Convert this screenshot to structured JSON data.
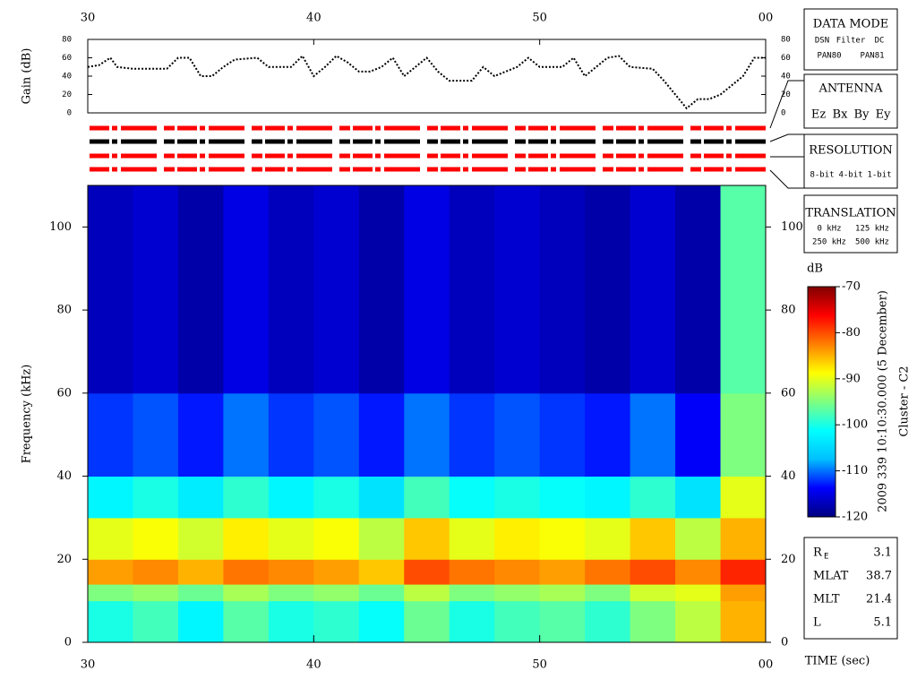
{
  "chart_data": [
    {
      "type": "line",
      "ylabel": "Gain (dB)",
      "x": [
        30,
        30.5,
        31,
        31.3,
        32,
        33,
        33.5,
        34,
        34.5,
        35,
        35.5,
        36,
        36.5,
        37.5,
        38,
        39,
        39.5,
        40,
        40.5,
        41,
        41.5,
        42,
        42.5,
        43,
        43.5,
        44,
        45,
        45.5,
        46,
        47,
        47.5,
        48,
        49,
        49.5,
        50,
        51,
        51.5,
        52,
        53,
        53.5,
        54,
        55,
        55.5,
        56,
        56.5,
        57,
        57.5,
        58,
        59,
        59.5,
        60
      ],
      "values": [
        50,
        52,
        60,
        50,
        48,
        48,
        48,
        60,
        60,
        40,
        40,
        50,
        58,
        60,
        50,
        50,
        62,
        40,
        50,
        62,
        55,
        45,
        45,
        50,
        60,
        40,
        60,
        45,
        35,
        35,
        50,
        40,
        50,
        60,
        50,
        50,
        60,
        40,
        60,
        62,
        50,
        48,
        35,
        20,
        5,
        15,
        15,
        20,
        40,
        60,
        60
      ],
      "color": "#000000",
      "xlim": [
        30,
        60
      ],
      "xticks": [
        30,
        40,
        50,
        {
          "value": 60,
          "label": "00"
        }
      ],
      "ylim": [
        0,
        80
      ],
      "yticks": [
        0,
        20,
        40,
        60,
        80
      ]
    },
    {
      "type": "heatmap",
      "ylabel": "Frequency (kHz)",
      "xlabel": "TIME (sec)",
      "xbins": [
        30,
        32,
        34,
        36,
        38,
        40,
        42,
        44,
        46,
        48,
        50,
        52,
        54,
        56,
        58,
        60
      ],
      "ybins": [
        0,
        10,
        14,
        20,
        30,
        40,
        60,
        110
      ],
      "z": [
        [
          -100,
          -98,
          -102,
          -97,
          -100,
          -99,
          -101,
          -96,
          -100,
          -98,
          -97,
          -99,
          -95,
          -92,
          -85
        ],
        [
          -95,
          -94,
          -96,
          -93,
          -95,
          -94,
          -96,
          -92,
          -95,
          -94,
          -93,
          -95,
          -91,
          -90,
          -84
        ],
        [
          -84,
          -83,
          -85,
          -82,
          -83,
          -84,
          -86,
          -80,
          -82,
          -83,
          -84,
          -82,
          -80,
          -83,
          -78
        ],
        [
          -90,
          -89,
          -91,
          -88,
          -90,
          -89,
          -92,
          -86,
          -90,
          -88,
          -89,
          -90,
          -86,
          -92,
          -85
        ],
        [
          -102,
          -100,
          -103,
          -99,
          -102,
          -100,
          -104,
          -98,
          -101,
          -100,
          -101,
          -102,
          -99,
          -104,
          -90
        ],
        [
          -112,
          -111,
          -113,
          -110,
          -112,
          -111,
          -113,
          -110,
          -112,
          -111,
          -112,
          -113,
          -110,
          -114,
          -95
        ],
        [
          -117,
          -116,
          -118,
          -115,
          -117,
          -116,
          -118,
          -115,
          -117,
          -116,
          -117,
          -118,
          -116,
          -118,
          -97
        ]
      ],
      "xlim": [
        30,
        60
      ],
      "xticks": [
        30,
        40,
        50,
        {
          "value": 60,
          "label": "00"
        }
      ],
      "ylim": [
        0,
        110
      ],
      "yticks": [
        0,
        20,
        40,
        60,
        80,
        100
      ],
      "zlabel": "dB",
      "zlim": [
        -120,
        -70
      ],
      "zticks": [
        -70,
        -80,
        -90,
        -100,
        -110,
        -120
      ],
      "colormap": [
        "#00007f",
        "#0000ff",
        "#00bfff",
        "#00ffff",
        "#7fff7f",
        "#ffff00",
        "#ff7f00",
        "#ff0000",
        "#7f0000"
      ],
      "annotation": "2009 339 10:10:30.000 (5 December)",
      "spacecraft": "Cluster - C2"
    }
  ],
  "legends": {
    "data_mode": {
      "title": "DATA MODE",
      "items": [
        {
          "text": "DSN",
          "color": "#ff0000"
        },
        {
          "text": "Filter",
          "color": "#00c000"
        },
        {
          "text": "DC",
          "color": "#0000ff"
        },
        {
          "text": "PAN80",
          "color": "#000000"
        },
        {
          "text": "PAN81",
          "color": "#00c0c0"
        }
      ]
    },
    "antenna": {
      "title": "ANTENNA",
      "items": [
        {
          "text": "Ez",
          "color": "#ff0000"
        },
        {
          "text": "Bx",
          "color": "#00c000"
        },
        {
          "text": "By",
          "color": "#0000ff"
        },
        {
          "text": "Ey",
          "color": "#000000"
        }
      ]
    },
    "resolution": {
      "title": "RESOLUTION",
      "items": [
        {
          "text": "8-bit",
          "color": "#ff0000"
        },
        {
          "text": "4-bit",
          "color": "#00c000"
        },
        {
          "text": "1-bit",
          "color": "#0000ff"
        }
      ]
    },
    "translation": {
      "title": "TRANSLATION",
      "items": [
        {
          "text": "0 kHz",
          "color": "#ff0000"
        },
        {
          "text": "125 kHz",
          "color": "#00c000"
        },
        {
          "text": "250 kHz",
          "color": "#0000ff"
        },
        {
          "text": "500 kHz",
          "color": "#000000"
        }
      ]
    }
  },
  "orbit": [
    {
      "label": "R",
      "sub": "E",
      "value": 3.1
    },
    {
      "label": "MLAT",
      "value": 38.7
    },
    {
      "label": "MLT",
      "value": 21.4
    },
    {
      "label": "L",
      "value": 5.1
    }
  ]
}
